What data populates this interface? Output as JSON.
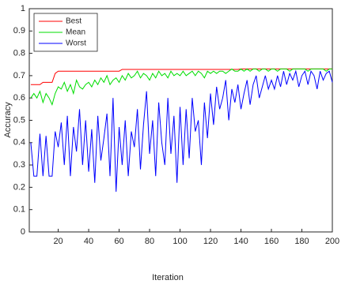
{
  "chart_data": {
    "type": "line",
    "xlabel": "Iteration",
    "ylabel": "Accuracy",
    "x": [
      2,
      4,
      6,
      8,
      10,
      12,
      14,
      16,
      18,
      20,
      22,
      24,
      26,
      28,
      30,
      32,
      34,
      36,
      38,
      40,
      42,
      44,
      46,
      48,
      50,
      52,
      54,
      56,
      58,
      60,
      62,
      64,
      66,
      68,
      70,
      72,
      74,
      76,
      78,
      80,
      82,
      84,
      86,
      88,
      90,
      92,
      94,
      96,
      98,
      100,
      102,
      104,
      106,
      108,
      110,
      112,
      114,
      116,
      118,
      120,
      122,
      124,
      126,
      128,
      130,
      132,
      134,
      136,
      138,
      140,
      142,
      144,
      146,
      148,
      150,
      152,
      154,
      156,
      158,
      160,
      162,
      164,
      166,
      168,
      170,
      172,
      174,
      176,
      178,
      180,
      182,
      184,
      186,
      188,
      190,
      192,
      194,
      196,
      198,
      200
    ],
    "series": [
      {
        "name": "Best",
        "color": "#ff0000",
        "values": [
          0.66,
          0.66,
          0.66,
          0.66,
          0.67,
          0.67,
          0.67,
          0.67,
          0.71,
          0.72,
          0.72,
          0.72,
          0.72,
          0.72,
          0.72,
          0.72,
          0.72,
          0.72,
          0.72,
          0.72,
          0.72,
          0.72,
          0.72,
          0.72,
          0.72,
          0.72,
          0.72,
          0.72,
          0.72,
          0.72,
          0.728,
          0.728,
          0.728,
          0.728,
          0.728,
          0.728,
          0.728,
          0.728,
          0.728,
          0.728,
          0.728,
          0.728,
          0.728,
          0.728,
          0.728,
          0.728,
          0.728,
          0.728,
          0.728,
          0.728,
          0.728,
          0.728,
          0.728,
          0.728,
          0.728,
          0.728,
          0.728,
          0.728,
          0.728,
          0.728,
          0.728,
          0.728,
          0.728,
          0.728,
          0.728,
          0.728,
          0.728,
          0.728,
          0.728,
          0.73,
          0.73,
          0.73,
          0.73,
          0.73,
          0.73,
          0.73,
          0.73,
          0.73,
          0.73,
          0.73,
          0.73,
          0.73,
          0.73,
          0.73,
          0.73,
          0.73,
          0.73,
          0.73,
          0.73,
          0.73,
          0.73,
          0.73,
          0.73,
          0.73,
          0.73,
          0.73,
          0.73,
          0.73,
          0.73,
          0.73
        ]
      },
      {
        "name": "Mean",
        "color": "#00dd00",
        "values": [
          0.6,
          0.62,
          0.6,
          0.63,
          0.58,
          0.62,
          0.6,
          0.57,
          0.62,
          0.65,
          0.64,
          0.67,
          0.63,
          0.66,
          0.62,
          0.68,
          0.65,
          0.64,
          0.66,
          0.67,
          0.65,
          0.68,
          0.66,
          0.69,
          0.67,
          0.7,
          0.66,
          0.68,
          0.69,
          0.67,
          0.7,
          0.68,
          0.71,
          0.69,
          0.7,
          0.72,
          0.69,
          0.71,
          0.7,
          0.68,
          0.71,
          0.69,
          0.72,
          0.7,
          0.71,
          0.69,
          0.72,
          0.7,
          0.71,
          0.7,
          0.72,
          0.7,
          0.71,
          0.72,
          0.7,
          0.72,
          0.71,
          0.69,
          0.72,
          0.71,
          0.72,
          0.71,
          0.72,
          0.72,
          0.71,
          0.72,
          0.73,
          0.72,
          0.72,
          0.73,
          0.72,
          0.73,
          0.72,
          0.73,
          0.73,
          0.72,
          0.73,
          0.73,
          0.72,
          0.73,
          0.73,
          0.72,
          0.73,
          0.73,
          0.73,
          0.72,
          0.73,
          0.73,
          0.73,
          0.73,
          0.73,
          0.72,
          0.73,
          0.73,
          0.73,
          0.73,
          0.73,
          0.72,
          0.73,
          0.73
        ]
      },
      {
        "name": "Worst",
        "color": "#0000ff",
        "values": [
          0.4,
          0.25,
          0.25,
          0.44,
          0.25,
          0.43,
          0.25,
          0.25,
          0.45,
          0.38,
          0.49,
          0.3,
          0.52,
          0.25,
          0.47,
          0.36,
          0.55,
          0.3,
          0.5,
          0.27,
          0.46,
          0.22,
          0.52,
          0.32,
          0.42,
          0.53,
          0.25,
          0.6,
          0.18,
          0.47,
          0.3,
          0.5,
          0.25,
          0.45,
          0.38,
          0.55,
          0.28,
          0.48,
          0.63,
          0.35,
          0.5,
          0.25,
          0.58,
          0.4,
          0.3,
          0.6,
          0.35,
          0.52,
          0.22,
          0.56,
          0.3,
          0.55,
          0.33,
          0.6,
          0.45,
          0.5,
          0.3,
          0.58,
          0.42,
          0.62,
          0.48,
          0.65,
          0.55,
          0.6,
          0.68,
          0.5,
          0.64,
          0.58,
          0.66,
          0.55,
          0.62,
          0.68,
          0.57,
          0.66,
          0.7,
          0.6,
          0.65,
          0.7,
          0.64,
          0.68,
          0.64,
          0.7,
          0.65,
          0.72,
          0.66,
          0.71,
          0.68,
          0.72,
          0.65,
          0.7,
          0.72,
          0.66,
          0.72,
          0.7,
          0.64,
          0.72,
          0.68,
          0.71,
          0.72,
          0.67
        ]
      }
    ],
    "xlim": [
      1,
      200
    ],
    "xticks": [
      20,
      40,
      60,
      80,
      100,
      120,
      140,
      160,
      180,
      200
    ],
    "ylim": [
      0,
      1
    ],
    "yticks": [
      0,
      0.1,
      0.2,
      0.3,
      0.4,
      0.5,
      0.6,
      0.7,
      0.8,
      0.9,
      1
    ],
    "grid": false,
    "legend": "northwest"
  }
}
